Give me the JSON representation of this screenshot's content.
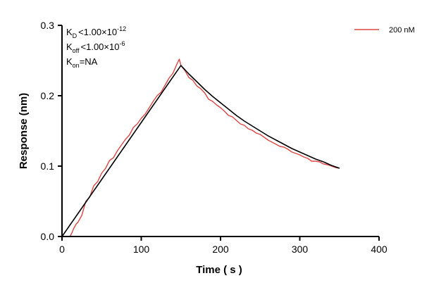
{
  "chart_data": {
    "type": "line",
    "title": "",
    "xlabel": "Time ( s )",
    "ylabel": "Response (nm)",
    "xlim": [
      0,
      400
    ],
    "ylim": [
      0,
      0.3
    ],
    "x_ticks": [
      "0",
      "100",
      "200",
      "300",
      "400"
    ],
    "y_ticks": [
      "0.0",
      "0.1",
      "0.2",
      "0.3"
    ],
    "grid": false,
    "legend_position": "top-right",
    "annotations": {
      "kd": {
        "main": "K",
        "sub": "D",
        "rel": "<",
        "value": "1.00×10",
        "exp": "-12"
      },
      "koff": {
        "main": "K",
        "sub": "off",
        "rel": "<",
        "value": "1.00×10",
        "exp": "-6"
      },
      "kon": {
        "main": "K",
        "sub": "on",
        "text": "=NA"
      }
    },
    "series": [
      {
        "name": "200 nM",
        "color": "#e04545",
        "x": [
          10,
          12,
          15,
          18,
          20,
          25,
          30,
          35,
          40,
          45,
          50,
          55,
          60,
          65,
          70,
          75,
          80,
          85,
          90,
          95,
          100,
          105,
          110,
          115,
          120,
          125,
          130,
          135,
          140,
          145,
          148,
          150,
          152,
          155,
          160,
          165,
          170,
          175,
          180,
          185,
          190,
          195,
          200,
          205,
          210,
          215,
          220,
          225,
          230,
          235,
          240,
          245,
          250,
          255,
          260,
          265,
          270,
          275,
          280,
          285,
          290,
          295,
          300,
          305,
          310,
          315,
          320,
          325,
          330,
          335,
          340,
          345,
          350
        ],
        "y": [
          0.0,
          0.004,
          0.012,
          0.018,
          0.02,
          0.03,
          0.05,
          0.056,
          0.072,
          0.078,
          0.09,
          0.097,
          0.108,
          0.112,
          0.122,
          0.13,
          0.138,
          0.144,
          0.155,
          0.16,
          0.168,
          0.174,
          0.183,
          0.192,
          0.2,
          0.205,
          0.215,
          0.225,
          0.232,
          0.245,
          0.252,
          0.243,
          0.24,
          0.236,
          0.226,
          0.222,
          0.214,
          0.21,
          0.204,
          0.195,
          0.192,
          0.187,
          0.183,
          0.178,
          0.172,
          0.17,
          0.165,
          0.16,
          0.158,
          0.153,
          0.151,
          0.147,
          0.145,
          0.141,
          0.137,
          0.134,
          0.131,
          0.128,
          0.127,
          0.124,
          0.12,
          0.118,
          0.116,
          0.113,
          0.111,
          0.107,
          0.107,
          0.106,
          0.103,
          0.102,
          0.1,
          0.098,
          0.097
        ]
      },
      {
        "name": "",
        "color": "#000000",
        "x": [
          0,
          50,
          100,
          150,
          160,
          170,
          180,
          190,
          200,
          210,
          220,
          230,
          240,
          250,
          260,
          270,
          280,
          290,
          300,
          310,
          320,
          330,
          340,
          350
        ],
        "y": [
          0.0,
          0.081,
          0.162,
          0.243,
          0.231,
          0.22,
          0.209,
          0.199,
          0.19,
          0.181,
          0.172,
          0.164,
          0.157,
          0.15,
          0.143,
          0.137,
          0.131,
          0.125,
          0.12,
          0.115,
          0.11,
          0.106,
          0.101,
          0.097
        ]
      }
    ]
  }
}
